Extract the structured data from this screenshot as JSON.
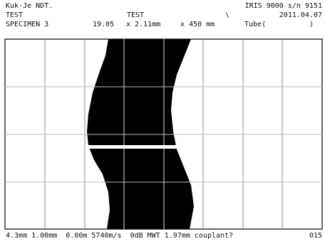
{
  "header": {
    "row1": [
      "Kuk-Je NDT.",
      "IRIS 9000 s/n 9151"
    ],
    "row2": [
      "TEST",
      "TEST",
      "\\",
      "2011.04.07"
    ],
    "row3": [
      "SPECIMEN 3",
      "19.05",
      "x 2.11mm",
      "x 450 mm",
      "Tube(",
      ")"
    ]
  },
  "footer": {
    "readout": "4.3mm 1.00mm  0.00m 5740m/s  0dB MWT 1.97mm couplant?",
    "code": "015"
  }
}
